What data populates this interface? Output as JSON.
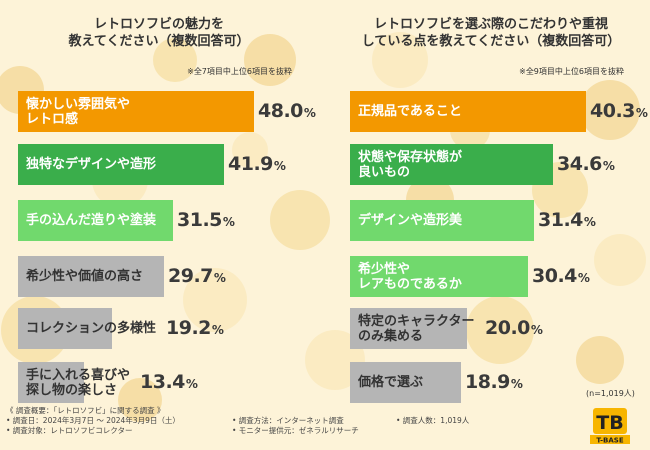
{
  "palette": {
    "orange": "#f39800",
    "green": "#3aae4b",
    "lightgreen": "#71d96d",
    "gray": "#b5b5b5",
    "yellow": "#f7b500",
    "background": "#fdf3d8"
  },
  "chart_data": [
    {
      "type": "bar",
      "orientation": "horizontal",
      "title": "レトロソフビの魅力を教えてください（複数回答可）",
      "title_lines": [
        "レトロソフビの魅力を",
        "教えてください（複数回答可）"
      ],
      "note": "※全7項目中上位6項目を抜粋",
      "unit": "%",
      "categories": [
        "懐かしい雰囲気やレトロ感",
        "独特なデザインや造形",
        "手の込んだ造りや塗装",
        "希少性や価値の高さ",
        "コレクションの多様性",
        "手に入れる喜びや探し物の楽しさ"
      ],
      "label_lines": [
        [
          "懐かしい雰囲気や",
          "レトロ感"
        ],
        [
          "独特なデザインや造形"
        ],
        [
          "手の込んだ造りや塗装"
        ],
        [
          "希少性や価値の高さ"
        ],
        [
          "コレクションの多様性"
        ],
        [
          "手に入れる喜びや",
          "探し物の楽しさ"
        ]
      ],
      "values": [
        48.0,
        41.9,
        31.5,
        29.7,
        19.2,
        13.4
      ],
      "value_labels": [
        "48.0",
        "41.9",
        "31.5",
        "29.7",
        "19.2",
        "13.4"
      ],
      "colors": [
        "#f39800",
        "#3aae4b",
        "#71d96d",
        "#b5b5b5",
        "#b5b5b5",
        "#b5b5b5"
      ],
      "label_tone": [
        "light",
        "light",
        "light",
        "dark",
        "dark",
        "dark"
      ],
      "xlim": [
        0,
        50
      ]
    },
    {
      "type": "bar",
      "orientation": "horizontal",
      "title": "レトロソフビを選ぶ際のこだわりや重視している点を教えてください（複数回答可）",
      "title_lines": [
        "レトロソフビを選ぶ際のこだわりや重視",
        "している点を教えてください（複数回答可）"
      ],
      "note": "※全9項目中上位6項目を抜粋",
      "unit": "%",
      "categories": [
        "正規品であること",
        "状態や保存状態が良いもの",
        "デザインや造形美",
        "希少性やレアものであるか",
        "特定のキャラクターのみ集める",
        "価格で選ぶ"
      ],
      "label_lines": [
        [
          "正規品であること"
        ],
        [
          "状態や保存状態が",
          "良いもの"
        ],
        [
          "デザインや造形美"
        ],
        [
          "希少性や",
          "レアものであるか"
        ],
        [
          "特定のキャラクター",
          "のみ集める"
        ],
        [
          "価格で選ぶ"
        ]
      ],
      "values": [
        40.3,
        34.6,
        31.4,
        30.4,
        20.0,
        18.9
      ],
      "value_labels": [
        "40.3",
        "34.6",
        "31.4",
        "30.4",
        "20.0",
        "18.9"
      ],
      "colors": [
        "#f39800",
        "#3aae4b",
        "#71d96d",
        "#71d96d",
        "#b5b5b5",
        "#b5b5b5"
      ],
      "label_tone": [
        "light",
        "light",
        "light",
        "light",
        "dark",
        "dark"
      ],
      "xlim": [
        0,
        50
      ]
    }
  ],
  "base_note": "(n=1,019人)",
  "survey": {
    "overview": "《 調査概要：「レトロソフビ」に関する調査 》",
    "period": "• 調査日：2024年3月7日 〜 2024年3月9日（土）",
    "target": "• 調査対象：レトロソフビコレクター",
    "method": "• 調査方法：インターネット調査",
    "provider": "• モニター提供元：ゼネラルリサーチ",
    "count": "• 調査人数：1,019人"
  },
  "logo": {
    "mark": "TB",
    "text": "T-BASE"
  }
}
